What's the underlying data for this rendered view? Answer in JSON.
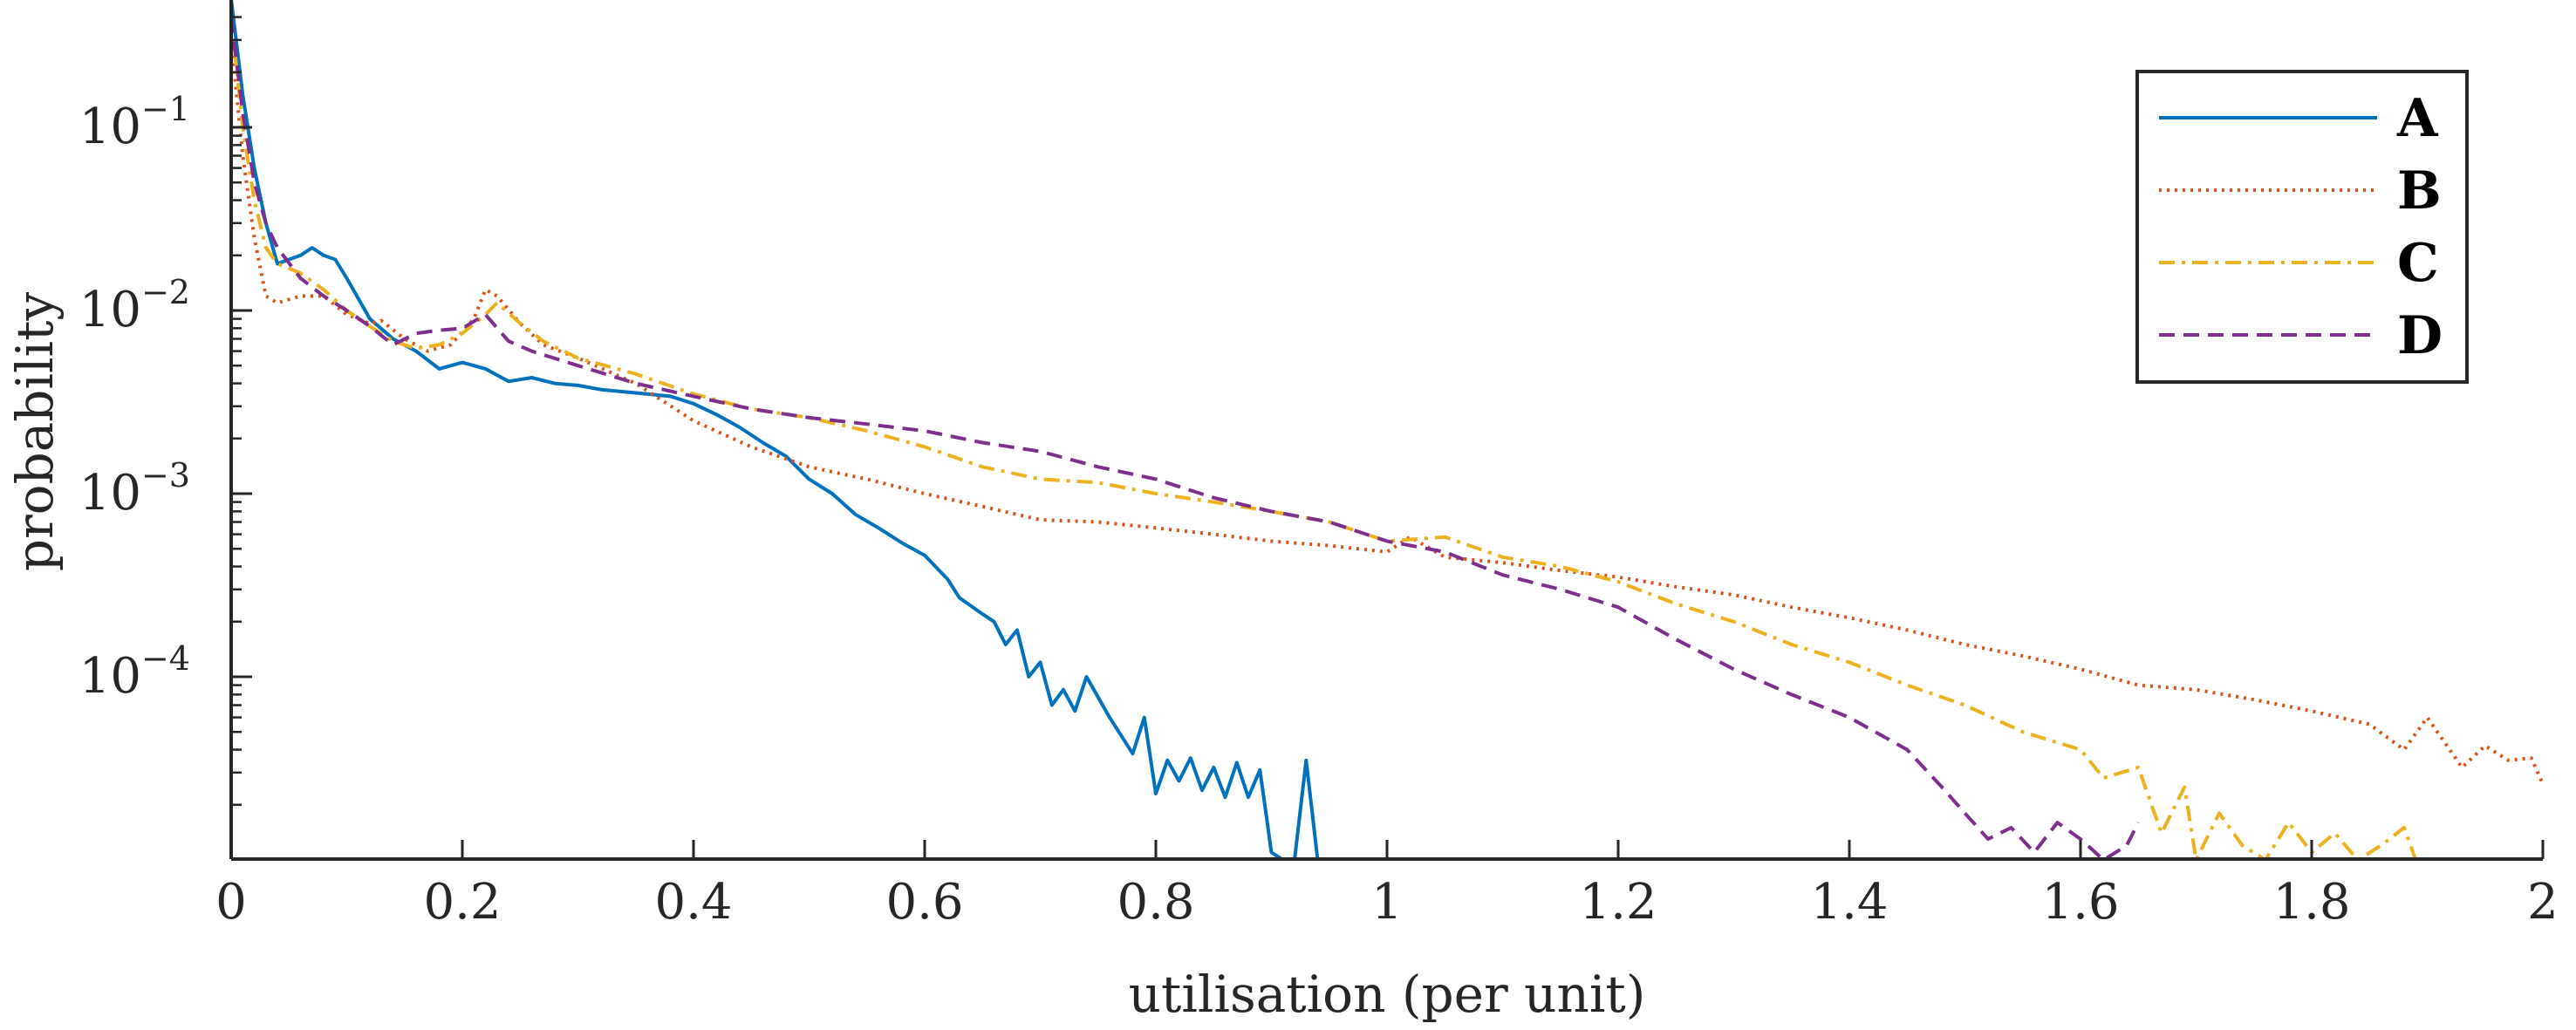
{
  "chart_data": {
    "type": "line",
    "xlabel": "utilisation (per unit)",
    "ylabel": "probability",
    "xlim": [
      0,
      2
    ],
    "ylim": [
      1e-05,
      0.5
    ],
    "yscale": "log",
    "x_ticks": [
      0,
      0.2,
      0.4,
      0.6,
      0.8,
      1,
      1.2,
      1.4,
      1.6,
      1.8,
      2
    ],
    "x_tick_labels": [
      "0",
      "0.2",
      "0.4",
      "0.6",
      "0.8",
      "1",
      "1.2",
      "1.4",
      "1.6",
      "1.8",
      "2"
    ],
    "y_ticks": [
      {
        "value": 0.0001,
        "base": "10",
        "exp": "−4"
      },
      {
        "value": 0.001,
        "base": "10",
        "exp": "−3"
      },
      {
        "value": 0.01,
        "base": "10",
        "exp": "−2"
      },
      {
        "value": 0.1,
        "base": "10",
        "exp": "−1"
      }
    ],
    "grid": false,
    "legend_position": "top-right",
    "series": [
      {
        "name": "A",
        "color": "#0072BD",
        "dash": "solid",
        "x": [
          0.0,
          0.01,
          0.02,
          0.03,
          0.04,
          0.06,
          0.07,
          0.08,
          0.09,
          0.1,
          0.12,
          0.14,
          0.16,
          0.18,
          0.2,
          0.22,
          0.24,
          0.26,
          0.28,
          0.3,
          0.32,
          0.34,
          0.36,
          0.38,
          0.4,
          0.42,
          0.44,
          0.46,
          0.48,
          0.5,
          0.52,
          0.54,
          0.56,
          0.58,
          0.6,
          0.62,
          0.63,
          0.65,
          0.66,
          0.67,
          0.68,
          0.69,
          0.7,
          0.71,
          0.72,
          0.73,
          0.74,
          0.76,
          0.78,
          0.79,
          0.8,
          0.81,
          0.82,
          0.83,
          0.84,
          0.85,
          0.86,
          0.87,
          0.88,
          0.89,
          0.9,
          0.91,
          0.92,
          0.93,
          0.94
        ],
        "y": [
          0.5,
          0.15,
          0.06,
          0.03,
          0.018,
          0.02,
          0.022,
          0.02,
          0.019,
          0.015,
          0.009,
          0.007,
          0.006,
          0.0048,
          0.0052,
          0.0048,
          0.0041,
          0.0043,
          0.004,
          0.0039,
          0.0037,
          0.0036,
          0.0035,
          0.0034,
          0.0031,
          0.0027,
          0.0023,
          0.0019,
          0.0016,
          0.0012,
          0.001,
          0.00077,
          0.00065,
          0.00054,
          0.00046,
          0.00034,
          0.00027,
          0.00022,
          0.0002,
          0.00015,
          0.00018,
          0.0001,
          0.00012,
          7e-05,
          8.5e-05,
          6.5e-05,
          0.0001,
          6e-05,
          3.8e-05,
          6e-05,
          2.3e-05,
          3.5e-05,
          2.7e-05,
          3.6e-05,
          2.4e-05,
          3.2e-05,
          2.2e-05,
          3.4e-05,
          2.2e-05,
          3.1e-05,
          1.1e-05,
          1e-05,
          1e-05,
          3.5e-05,
          1e-05
        ]
      },
      {
        "name": "B",
        "color": "#D95319",
        "dash": "dotted",
        "x": [
          0.0,
          0.01,
          0.02,
          0.03,
          0.04,
          0.06,
          0.08,
          0.1,
          0.12,
          0.13,
          0.15,
          0.17,
          0.19,
          0.21,
          0.22,
          0.23,
          0.25,
          0.27,
          0.3,
          0.35,
          0.4,
          0.45,
          0.5,
          0.55,
          0.6,
          0.65,
          0.7,
          0.75,
          0.8,
          0.85,
          0.9,
          0.95,
          1.0,
          1.02,
          1.05,
          1.1,
          1.15,
          1.2,
          1.25,
          1.3,
          1.35,
          1.4,
          1.45,
          1.5,
          1.55,
          1.6,
          1.65,
          1.7,
          1.75,
          1.8,
          1.85,
          1.88,
          1.9,
          1.93,
          1.95,
          1.97,
          1.99,
          2.0
        ],
        "y": [
          0.3,
          0.07,
          0.025,
          0.012,
          0.011,
          0.012,
          0.012,
          0.0095,
          0.0085,
          0.0088,
          0.007,
          0.006,
          0.0065,
          0.009,
          0.013,
          0.012,
          0.0085,
          0.0065,
          0.0055,
          0.004,
          0.0025,
          0.0018,
          0.0014,
          0.0012,
          0.001,
          0.00085,
          0.00072,
          0.0007,
          0.00065,
          0.0006,
          0.00055,
          0.00052,
          0.00048,
          0.00058,
          0.00045,
          0.00042,
          0.00038,
          0.00035,
          0.00031,
          0.00028,
          0.00024,
          0.00021,
          0.00018,
          0.00015,
          0.00013,
          0.00011,
          9e-05,
          8.5e-05,
          7.5e-05,
          6.5e-05,
          5.5e-05,
          4e-05,
          6e-05,
          3.2e-05,
          4.2e-05,
          3.5e-05,
          3.6e-05,
          2.6e-05
        ]
      },
      {
        "name": "C",
        "color": "#EDB120",
        "dash": "dashdot",
        "x": [
          0.0,
          0.01,
          0.02,
          0.03,
          0.04,
          0.06,
          0.08,
          0.1,
          0.12,
          0.14,
          0.16,
          0.18,
          0.2,
          0.22,
          0.23,
          0.25,
          0.27,
          0.3,
          0.35,
          0.4,
          0.45,
          0.5,
          0.55,
          0.6,
          0.65,
          0.7,
          0.75,
          0.8,
          0.85,
          0.9,
          0.95,
          1.0,
          1.05,
          1.1,
          1.15,
          1.2,
          1.25,
          1.3,
          1.35,
          1.4,
          1.45,
          1.5,
          1.55,
          1.6,
          1.62,
          1.65,
          1.67,
          1.69,
          1.7,
          1.72,
          1.74,
          1.76,
          1.78,
          1.8,
          1.82,
          1.84,
          1.86,
          1.88,
          1.89
        ],
        "y": [
          0.4,
          0.1,
          0.04,
          0.022,
          0.018,
          0.016,
          0.013,
          0.01,
          0.0082,
          0.0068,
          0.0062,
          0.0065,
          0.0075,
          0.0095,
          0.011,
          0.0085,
          0.0068,
          0.0055,
          0.0045,
          0.0035,
          0.0029,
          0.0026,
          0.0022,
          0.0018,
          0.0014,
          0.0012,
          0.00115,
          0.001,
          0.0009,
          0.0008,
          0.0007,
          0.00055,
          0.00058,
          0.00045,
          0.0004,
          0.00033,
          0.00025,
          0.0002,
          0.00015,
          0.00012,
          9e-05,
          7e-05,
          5e-05,
          4e-05,
          2.8e-05,
          3.2e-05,
          1.4e-05,
          2.5e-05,
          1e-05,
          1.8e-05,
          1.2e-05,
          1e-05,
          1.6e-05,
          1.1e-05,
          1.4e-05,
          1e-05,
          1.2e-05,
          1.5e-05,
          1e-05
        ]
      },
      {
        "name": "D",
        "color": "#7E2F8E",
        "dash": "dashed",
        "x": [
          0.0,
          0.01,
          0.02,
          0.03,
          0.04,
          0.06,
          0.08,
          0.1,
          0.12,
          0.14,
          0.16,
          0.18,
          0.2,
          0.22,
          0.24,
          0.26,
          0.3,
          0.35,
          0.4,
          0.45,
          0.5,
          0.55,
          0.6,
          0.65,
          0.7,
          0.75,
          0.8,
          0.85,
          0.9,
          0.95,
          1.0,
          1.05,
          1.1,
          1.15,
          1.2,
          1.25,
          1.3,
          1.35,
          1.4,
          1.45,
          1.48,
          1.5,
          1.52,
          1.54,
          1.56,
          1.58,
          1.6,
          1.62,
          1.64,
          1.65
        ],
        "y": [
          0.4,
          0.12,
          0.05,
          0.03,
          0.022,
          0.015,
          0.012,
          0.01,
          0.0082,
          0.0065,
          0.0075,
          0.0078,
          0.008,
          0.0095,
          0.0068,
          0.006,
          0.005,
          0.004,
          0.0034,
          0.0029,
          0.0026,
          0.0024,
          0.0022,
          0.0019,
          0.0017,
          0.0014,
          0.0012,
          0.00095,
          0.0008,
          0.0007,
          0.00055,
          0.00048,
          0.00036,
          0.0003,
          0.00024,
          0.00016,
          0.00011,
          8e-05,
          6e-05,
          4e-05,
          2.5e-05,
          1.8e-05,
          1.3e-05,
          1.5e-05,
          1.1e-05,
          1.6e-05,
          1.3e-05,
          1e-05,
          1.2e-05,
          1.6e-05
        ]
      }
    ]
  }
}
